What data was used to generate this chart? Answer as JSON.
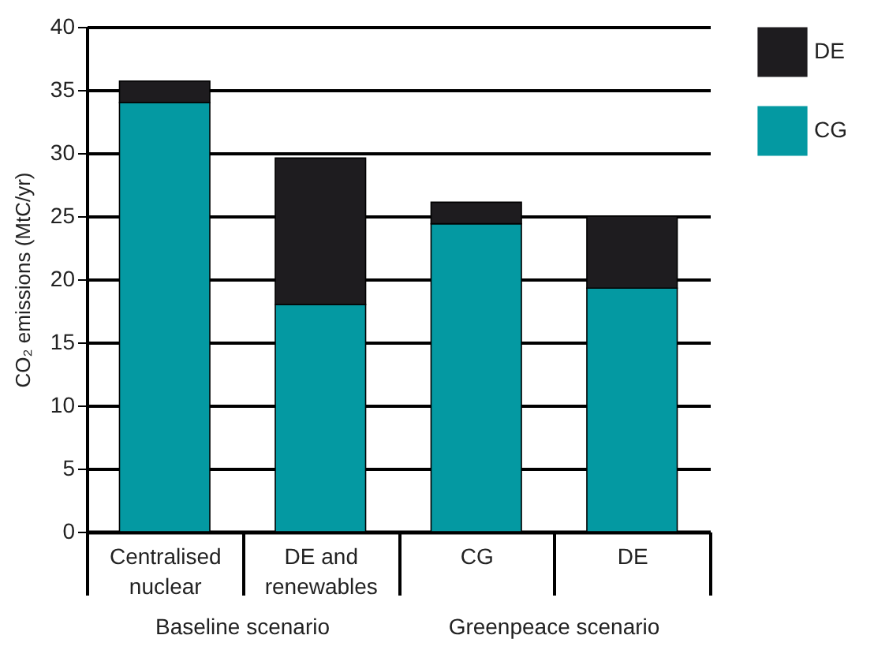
{
  "chart_data": {
    "type": "bar",
    "stacked": true,
    "categories": [
      "Centralised nuclear",
      "DE and renewables",
      "CG",
      "DE"
    ],
    "series": [
      {
        "name": "CG",
        "color": "#0499a2",
        "values": [
          34,
          18,
          24.4,
          19.3
        ]
      },
      {
        "name": "DE",
        "color": "#1e1c1f",
        "values": [
          1.7,
          11.6,
          1.7,
          5.7
        ]
      }
    ],
    "ylabel": "CO₂ emissions (MtC/yr)",
    "ylim": [
      0,
      40
    ],
    "yticks": [
      0,
      5,
      10,
      15,
      20,
      25,
      30,
      35,
      40
    ],
    "grid": "y",
    "legend": "top right",
    "annotations": [
      "Baseline scenario",
      "Greenpeace scenario"
    ]
  }
}
